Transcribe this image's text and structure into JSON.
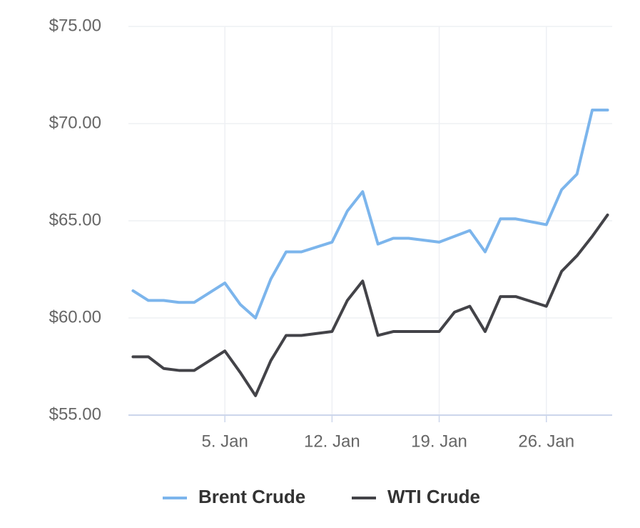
{
  "chart_data": {
    "type": "line",
    "x": [
      -1,
      0,
      1,
      2,
      3,
      5,
      6,
      7,
      8,
      9,
      10,
      12,
      13,
      14,
      15,
      16,
      17,
      19,
      20,
      21,
      22,
      23,
      24,
      26,
      27,
      28,
      29,
      30
    ],
    "series": [
      {
        "name": "Brent Crude",
        "color": "#7cb5ec",
        "values": [
          61.4,
          60.9,
          60.9,
          60.8,
          60.8,
          61.8,
          60.7,
          60.0,
          62.0,
          63.4,
          63.4,
          63.9,
          65.5,
          66.5,
          63.8,
          64.1,
          64.1,
          63.9,
          64.2,
          64.5,
          63.4,
          65.1,
          65.1,
          64.8,
          66.6,
          67.4,
          70.7,
          70.7
        ]
      },
      {
        "name": "WTI Crude",
        "color": "#434348",
        "values": [
          58.0,
          58.0,
          57.4,
          57.3,
          57.3,
          58.3,
          57.2,
          56.0,
          57.8,
          59.1,
          59.1,
          59.3,
          60.9,
          61.9,
          59.1,
          59.3,
          59.3,
          59.3,
          60.3,
          60.6,
          59.3,
          61.1,
          61.1,
          60.6,
          62.4,
          63.2,
          64.2,
          65.3
        ]
      }
    ],
    "xlim": [
      -1.3,
      30.3
    ],
    "xticks": [
      {
        "value": 5,
        "label": "5. Jan"
      },
      {
        "value": 12,
        "label": "12. Jan"
      },
      {
        "value": 19,
        "label": "19. Jan"
      },
      {
        "value": 26,
        "label": "26. Jan"
      }
    ],
    "ylim": [
      55,
      75
    ],
    "yticks": [
      {
        "value": 55,
        "label": "$55.00"
      },
      {
        "value": 60,
        "label": "$60.00"
      },
      {
        "value": 65,
        "label": "$65.00"
      },
      {
        "value": 70,
        "label": "$70.00"
      },
      {
        "value": 75,
        "label": "$75.00"
      }
    ],
    "grid": true,
    "legend": "bottom"
  }
}
